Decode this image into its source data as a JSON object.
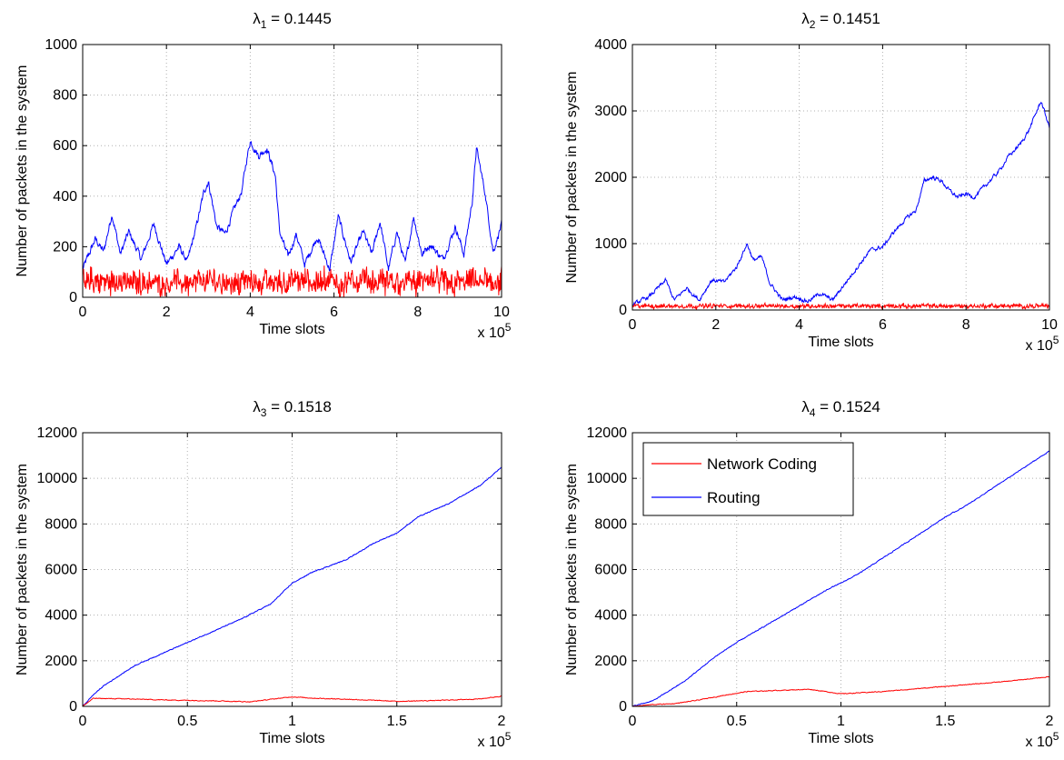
{
  "colors": {
    "network_coding": "#ff0000",
    "routing": "#0000ff",
    "grid": "#b0b0b0",
    "axis": "#000000"
  },
  "chart_data": [
    {
      "type": "line",
      "title_symbol": "λ",
      "title_subscript": "1",
      "title_value": " = 0.1445",
      "xlabel": "Time slots",
      "ylabel": "Number of packets in the system",
      "x_multiplier_base": "x 10",
      "x_multiplier_exp": "5",
      "xlim": [
        0,
        10
      ],
      "ylim": [
        0,
        1000
      ],
      "xticks": [
        0,
        2,
        4,
        6,
        8,
        10
      ],
      "yticks": [
        0,
        200,
        400,
        600,
        800,
        1000
      ],
      "xtick_labels": [
        "0",
        "2",
        "4",
        "6",
        "8",
        "10"
      ],
      "ytick_labels": [
        "0",
        "200",
        "400",
        "600",
        "800",
        "1000"
      ],
      "grid": true,
      "series": [
        {
          "key": "routing",
          "noise": 22,
          "x": [
            0,
            0.3,
            0.5,
            0.7,
            0.9,
            1.1,
            1.4,
            1.7,
            2.0,
            2.3,
            2.5,
            2.7,
            2.9,
            3.0,
            3.2,
            3.4,
            3.6,
            3.8,
            3.9,
            4.0,
            4.2,
            4.4,
            4.6,
            4.7,
            4.9,
            5.1,
            5.3,
            5.6,
            5.9,
            6.1,
            6.4,
            6.7,
            6.9,
            7.1,
            7.3,
            7.5,
            7.7,
            7.9,
            8.1,
            8.3,
            8.6,
            8.9,
            9.1,
            9.3,
            9.4,
            9.6,
            9.8,
            10.0
          ],
          "y": [
            110,
            230,
            180,
            330,
            170,
            260,
            150,
            290,
            130,
            200,
            140,
            270,
            420,
            460,
            280,
            250,
            340,
            420,
            530,
            620,
            560,
            590,
            480,
            260,
            160,
            250,
            130,
            240,
            110,
            320,
            140,
            260,
            170,
            300,
            110,
            260,
            130,
            320,
            170,
            210,
            150,
            280,
            170,
            380,
            590,
            420,
            180,
            290
          ]
        },
        {
          "key": "network_coding",
          "noise": 45,
          "x": [
            0,
            1,
            2,
            3,
            4,
            5,
            6,
            7,
            8,
            9,
            10
          ],
          "y": [
            60,
            60,
            60,
            62,
            62,
            60,
            60,
            60,
            60,
            60,
            60
          ]
        }
      ]
    },
    {
      "type": "line",
      "title_symbol": "λ",
      "title_subscript": "2",
      "title_value": " = 0.1451",
      "xlabel": "Time slots",
      "ylabel": "Number of packets in the system",
      "x_multiplier_base": "x 10",
      "x_multiplier_exp": "5",
      "xlim": [
        0,
        10
      ],
      "ylim": [
        0,
        4000
      ],
      "xticks": [
        0,
        2,
        4,
        6,
        8,
        10
      ],
      "yticks": [
        0,
        1000,
        2000,
        3000,
        4000
      ],
      "xtick_labels": [
        "0",
        "2",
        "4",
        "6",
        "8",
        "10"
      ],
      "ytick_labels": [
        "0",
        "1000",
        "2000",
        "3000",
        "4000"
      ],
      "grid": true,
      "series": [
        {
          "key": "routing",
          "noise": 45,
          "x": [
            0,
            0.4,
            0.8,
            1.0,
            1.3,
            1.6,
            1.9,
            2.2,
            2.5,
            2.75,
            2.9,
            3.1,
            3.3,
            3.6,
            3.9,
            4.2,
            4.5,
            4.8,
            5.1,
            5.4,
            5.7,
            6.0,
            6.3,
            6.6,
            6.8,
            7.0,
            7.2,
            7.4,
            7.6,
            7.8,
            8.0,
            8.2,
            8.5,
            8.8,
            9.0,
            9.3,
            9.5,
            9.7,
            9.8,
            10.0
          ],
          "y": [
            80,
            200,
            450,
            150,
            330,
            150,
            450,
            420,
            650,
            1000,
            750,
            800,
            400,
            150,
            200,
            130,
            250,
            150,
            400,
            650,
            900,
            950,
            1200,
            1400,
            1500,
            1950,
            2000,
            1950,
            1800,
            1700,
            1750,
            1700,
            1900,
            2100,
            2300,
            2500,
            2700,
            3000,
            3150,
            2750
          ]
        },
        {
          "key": "network_coding",
          "noise": 30,
          "x": [
            0,
            2,
            4,
            6,
            8,
            10
          ],
          "y": [
            60,
            60,
            60,
            60,
            60,
            60
          ]
        }
      ]
    },
    {
      "type": "line",
      "title_symbol": "λ",
      "title_subscript": "3",
      "title_value": " = 0.1518",
      "xlabel": "Time slots",
      "ylabel": "Number of packets in the system",
      "x_multiplier_base": "x 10",
      "x_multiplier_exp": "5",
      "xlim": [
        0,
        2
      ],
      "ylim": [
        0,
        12000
      ],
      "xticks": [
        0,
        0.5,
        1,
        1.5,
        2
      ],
      "yticks": [
        0,
        2000,
        4000,
        6000,
        8000,
        10000,
        12000
      ],
      "xtick_labels": [
        "0",
        "0.5",
        "1",
        "1.5",
        "2"
      ],
      "ytick_labels": [
        "0",
        "2000",
        "4000",
        "6000",
        "8000",
        "10000",
        "12000"
      ],
      "grid": true,
      "series": [
        {
          "key": "routing",
          "noise": 30,
          "x": [
            0,
            0.05,
            0.1,
            0.25,
            0.5,
            0.75,
            0.9,
            1.0,
            1.1,
            1.25,
            1.4,
            1.5,
            1.6,
            1.75,
            1.9,
            2.0
          ],
          "y": [
            0,
            500,
            900,
            1800,
            2800,
            3800,
            4500,
            5400,
            5900,
            6400,
            7200,
            7600,
            8300,
            8900,
            9700,
            10500
          ]
        },
        {
          "key": "network_coding",
          "noise": 25,
          "x": [
            0,
            0.05,
            0.2,
            0.4,
            0.6,
            0.8,
            1.0,
            1.1,
            1.3,
            1.5,
            1.7,
            1.9,
            2.0
          ],
          "y": [
            0,
            350,
            330,
            280,
            250,
            200,
            420,
            360,
            300,
            220,
            260,
            330,
            450
          ]
        }
      ]
    },
    {
      "type": "line",
      "title_symbol": "λ",
      "title_subscript": "4",
      "title_value": " = 0.1524",
      "xlabel": "Time slots",
      "ylabel": "Number of packets in the system",
      "x_multiplier_base": "x 10",
      "x_multiplier_exp": "5",
      "xlim": [
        0,
        2
      ],
      "ylim": [
        0,
        12000
      ],
      "xticks": [
        0,
        0.5,
        1,
        1.5,
        2
      ],
      "yticks": [
        0,
        2000,
        4000,
        6000,
        8000,
        10000,
        12000
      ],
      "xtick_labels": [
        "0",
        "0.5",
        "1",
        "1.5",
        "2"
      ],
      "ytick_labels": [
        "0",
        "2000",
        "4000",
        "6000",
        "8000",
        "10000",
        "12000"
      ],
      "grid": true,
      "legend": {
        "placement": "top-left",
        "entries": [
          {
            "key": "network_coding",
            "label": "Network Coding"
          },
          {
            "key": "routing",
            "label": "Routing"
          }
        ]
      },
      "series": [
        {
          "key": "routing",
          "noise": 30,
          "x": [
            0,
            0.1,
            0.25,
            0.4,
            0.5,
            0.65,
            0.8,
            0.95,
            1.0,
            1.1,
            1.25,
            1.4,
            1.5,
            1.6,
            1.75,
            1.9,
            2.0
          ],
          "y": [
            0,
            250,
            1100,
            2200,
            2800,
            3600,
            4400,
            5200,
            5400,
            5900,
            6800,
            7700,
            8300,
            8800,
            9700,
            10600,
            11200
          ]
        },
        {
          "key": "network_coding",
          "noise": 25,
          "x": [
            0,
            0.1,
            0.2,
            0.3,
            0.45,
            0.55,
            0.7,
            0.85,
            1.0,
            1.2,
            1.4,
            1.6,
            1.8,
            2.0
          ],
          "y": [
            0,
            80,
            120,
            250,
            500,
            650,
            700,
            750,
            550,
            650,
            800,
            950,
            1100,
            1300
          ]
        }
      ]
    }
  ]
}
